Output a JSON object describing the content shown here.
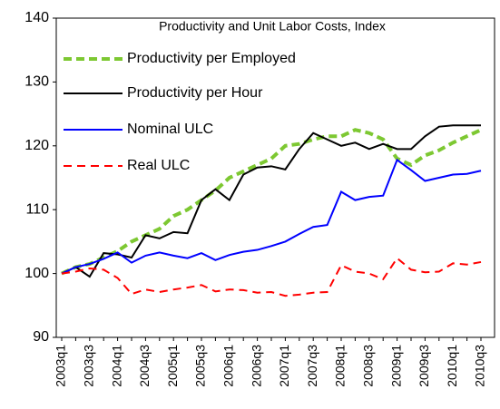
{
  "chart_data": {
    "type": "line",
    "title": "Productivity and Unit Labor Costs, Index",
    "categories": [
      "2003q1",
      null,
      "2003q3",
      null,
      "2004q1",
      null,
      "2004q3",
      null,
      "2005q1",
      null,
      "2005q3",
      null,
      "2006q1",
      null,
      "2006q3",
      null,
      "2007q1",
      null,
      "2007q3",
      null,
      "2008q1",
      null,
      "2008q3",
      null,
      "2009q1",
      null,
      "2009q3",
      null,
      "2010q1",
      null,
      "2010q3"
    ],
    "series": [
      {
        "name": "Productivity per Employed",
        "color": "#7dc832",
        "dash": "9,5",
        "width": 4,
        "values": [
          100,
          101,
          101.5,
          102.5,
          103.5,
          105,
          106,
          107,
          109,
          110,
          111.5,
          113,
          115,
          116,
          117,
          118,
          120,
          120.3,
          121,
          121.5,
          121.5,
          122.5,
          122,
          121,
          118,
          117,
          118.5,
          119.3,
          120.5,
          121.5,
          122.5
        ]
      },
      {
        "name": "Productivity per Hour",
        "color": "#000000",
        "dash": "none",
        "width": 2,
        "values": [
          100,
          101,
          99.5,
          103.2,
          103,
          102.5,
          106,
          105.5,
          106.5,
          106.3,
          111.5,
          113.2,
          111.5,
          115.5,
          116.6,
          116.8,
          116.3,
          119.5,
          122,
          121,
          120,
          120.5,
          119.5,
          120.3,
          119.5,
          119.5,
          121.5,
          123,
          123.2,
          123.2,
          123.2
        ]
      },
      {
        "name": "Nominal ULC",
        "color": "#0000ff",
        "dash": "none",
        "width": 2,
        "values": [
          100,
          101,
          101.5,
          102.3,
          103.3,
          101.7,
          102.8,
          103.3,
          102.8,
          102.4,
          103.2,
          102.1,
          102.9,
          103.4,
          103.7,
          104.3,
          105,
          106.2,
          107.3,
          107.6,
          112.8,
          111.5,
          112,
          112.2,
          117.8,
          116.2,
          114.5,
          115,
          115.5,
          115.6,
          116.1
        ]
      },
      {
        "name": "Real ULC",
        "color": "#ff0000",
        "dash": "9,6",
        "width": 2,
        "values": [
          100,
          100.3,
          100.8,
          100.6,
          99.3,
          96.8,
          97.5,
          97.1,
          97.5,
          97.8,
          98.2,
          97.2,
          97.5,
          97.4,
          97,
          97.1,
          96.5,
          96.7,
          97,
          97.1,
          101.3,
          100.3,
          100,
          99.1,
          102.4,
          100.6,
          100.2,
          100.3,
          101.6,
          101.4,
          101.8
        ]
      }
    ],
    "ylim": [
      90,
      140
    ],
    "yticks": [
      90,
      100,
      110,
      120,
      130,
      140
    ],
    "grid": false
  }
}
